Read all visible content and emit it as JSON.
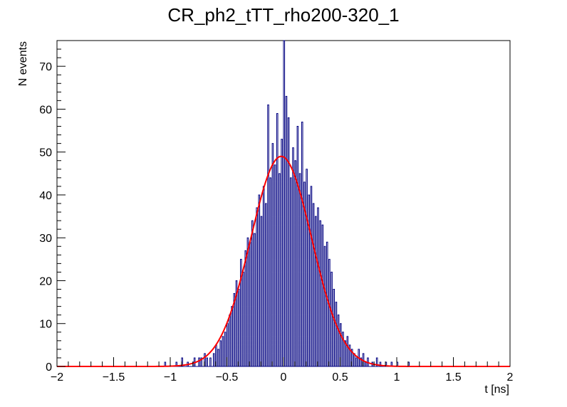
{
  "chart_data": {
    "type": "histogram",
    "title": "CR_ph2_tTT_rho200-320_1",
    "xlabel": "t [ns]",
    "ylabel": "N events",
    "xlim": [
      -2,
      2
    ],
    "ylim": [
      0,
      76
    ],
    "x_ticks": [
      "−2",
      "−1.5",
      "−1",
      "−0.5",
      "0",
      "0.5",
      "1",
      "1.5",
      "2"
    ],
    "y_ticks": [
      "0",
      "10",
      "20",
      "30",
      "40",
      "50",
      "60",
      "70"
    ],
    "grid": false,
    "series": [
      {
        "type": "histogram",
        "color": "#000080",
        "bin_width": 0.01,
        "bins": [
          [
            -1.05,
            1
          ],
          [
            -0.95,
            1
          ],
          [
            -0.9,
            2
          ],
          [
            -0.85,
            1
          ],
          [
            -0.8,
            1
          ],
          [
            -0.79,
            2
          ],
          [
            -0.75,
            2
          ],
          [
            -0.73,
            2
          ],
          [
            -0.7,
            3
          ],
          [
            -0.68,
            2
          ],
          [
            -0.65,
            2
          ],
          [
            -0.62,
            3
          ],
          [
            -0.6,
            5
          ],
          [
            -0.58,
            4
          ],
          [
            -0.56,
            6
          ],
          [
            -0.54,
            7
          ],
          [
            -0.52,
            8
          ],
          [
            -0.5,
            10
          ],
          [
            -0.48,
            12
          ],
          [
            -0.46,
            14
          ],
          [
            -0.44,
            17
          ],
          [
            -0.42,
            20
          ],
          [
            -0.4,
            18
          ],
          [
            -0.38,
            25
          ],
          [
            -0.36,
            22
          ],
          [
            -0.34,
            27
          ],
          [
            -0.32,
            30
          ],
          [
            -0.3,
            29
          ],
          [
            -0.28,
            34
          ],
          [
            -0.26,
            31
          ],
          [
            -0.24,
            37
          ],
          [
            -0.22,
            40
          ],
          [
            -0.2,
            35
          ],
          [
            -0.18,
            42
          ],
          [
            -0.16,
            38
          ],
          [
            -0.14,
            61
          ],
          [
            -0.12,
            44
          ],
          [
            -0.1,
            52
          ],
          [
            -0.08,
            47
          ],
          [
            -0.06,
            59
          ],
          [
            -0.04,
            45
          ],
          [
            -0.02,
            53
          ],
          [
            0.0,
            76
          ],
          [
            0.02,
            63
          ],
          [
            0.04,
            58
          ],
          [
            0.06,
            44
          ],
          [
            0.08,
            51
          ],
          [
            0.1,
            48
          ],
          [
            0.12,
            56
          ],
          [
            0.14,
            45
          ],
          [
            0.16,
            57
          ],
          [
            0.18,
            43
          ],
          [
            0.2,
            46
          ],
          [
            0.22,
            40
          ],
          [
            0.24,
            42
          ],
          [
            0.26,
            38
          ],
          [
            0.28,
            35
          ],
          [
            0.3,
            37
          ],
          [
            0.32,
            34
          ],
          [
            0.34,
            33
          ],
          [
            0.36,
            28
          ],
          [
            0.38,
            29
          ],
          [
            0.4,
            25
          ],
          [
            0.42,
            22
          ],
          [
            0.44,
            18
          ],
          [
            0.46,
            15
          ],
          [
            0.48,
            12
          ],
          [
            0.5,
            10
          ],
          [
            0.52,
            8
          ],
          [
            0.54,
            6
          ],
          [
            0.56,
            7
          ],
          [
            0.58,
            5
          ],
          [
            0.6,
            4
          ],
          [
            0.62,
            3
          ],
          [
            0.64,
            2
          ],
          [
            0.66,
            4
          ],
          [
            0.68,
            2
          ],
          [
            0.7,
            3
          ],
          [
            0.72,
            1
          ],
          [
            0.74,
            2
          ],
          [
            0.78,
            1
          ],
          [
            0.82,
            2
          ],
          [
            0.85,
            1
          ],
          [
            0.9,
            1
          ],
          [
            0.95,
            1
          ],
          [
            1.0,
            1
          ],
          [
            1.1,
            1
          ]
        ]
      },
      {
        "type": "gaussian-fit",
        "color": "#ff0000",
        "amplitude": 49,
        "mean": -0.02,
        "sigma": 0.27
      }
    ]
  }
}
